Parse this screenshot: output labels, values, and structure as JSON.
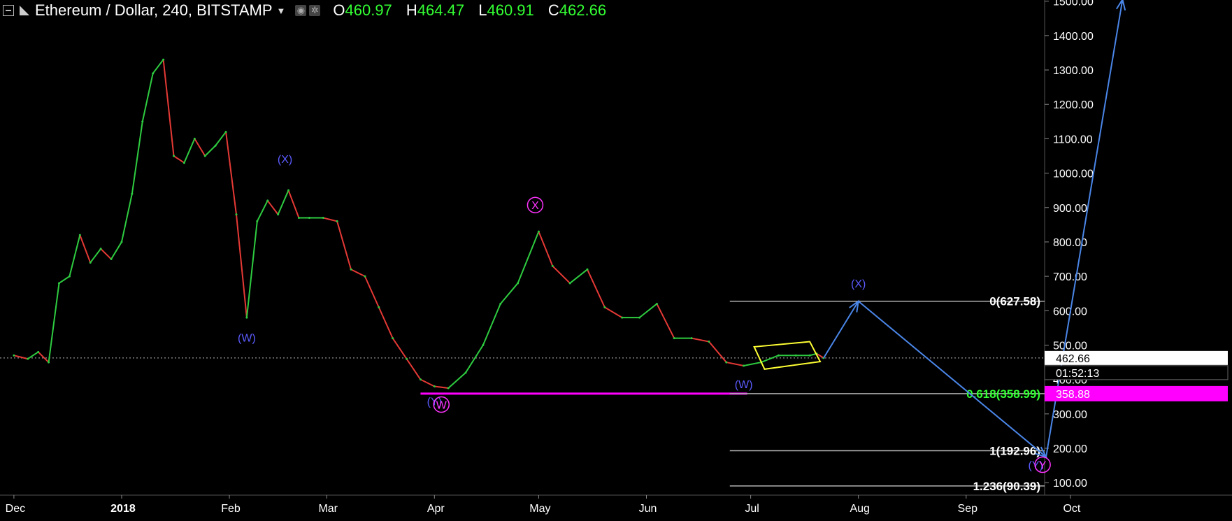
{
  "header": {
    "title": "Ethereum / Dollar, 240, BITSTAMP",
    "ohlc": [
      {
        "key": "O",
        "value": "460.97"
      },
      {
        "key": "H",
        "value": "464.47"
      },
      {
        "key": "L",
        "value": "460.91"
      },
      {
        "key": "C",
        "value": "462.66"
      }
    ]
  },
  "colors": {
    "background": "#000000",
    "up": "#2ecc40",
    "down": "#e53935",
    "projection": "#4a86e8",
    "wave_label_blue": "#5b5bff",
    "wave_label_magenta": "#ff33ff",
    "fib_line": "#b0b0b0",
    "triangle": "#ffff33"
  },
  "chart_data": {
    "type": "line",
    "title": "Ethereum / Dollar, 240, BITSTAMP",
    "x_tick_labels": [
      "Dec",
      "2018",
      "Feb",
      "Mar",
      "Apr",
      "May",
      "Jun",
      "Jul",
      "Aug",
      "Sep",
      "Oct"
    ],
    "y_tick_labels": [
      "100.00",
      "200.00",
      "300.00",
      "400.00",
      "500.00",
      "600.00",
      "700.00",
      "800.00",
      "900.00",
      "1000.00",
      "1100.00",
      "1200.00",
      "1300.00",
      "1400.00",
      "1500.00"
    ],
    "ylim": [
      40,
      1510
    ],
    "price_series": {
      "name": "",
      "x": [
        "2017-12-01",
        "2017-12-05",
        "2017-12-08",
        "2017-12-11",
        "2017-12-14",
        "2017-12-17",
        "2017-12-20",
        "2017-12-23",
        "2017-12-26",
        "2017-12-29",
        "2018-01-01",
        "2018-01-04",
        "2018-01-07",
        "2018-01-10",
        "2018-01-13",
        "2018-01-16",
        "2018-01-19",
        "2018-01-22",
        "2018-01-25",
        "2018-01-28",
        "2018-01-31",
        "2018-02-03",
        "2018-02-06",
        "2018-02-09",
        "2018-02-12",
        "2018-02-15",
        "2018-02-18",
        "2018-02-21",
        "2018-02-24",
        "2018-02-28",
        "2018-03-04",
        "2018-03-08",
        "2018-03-12",
        "2018-03-16",
        "2018-03-20",
        "2018-03-24",
        "2018-03-28",
        "2018-04-01",
        "2018-04-05",
        "2018-04-10",
        "2018-04-15",
        "2018-04-20",
        "2018-04-25",
        "2018-05-01",
        "2018-05-05",
        "2018-05-10",
        "2018-05-15",
        "2018-05-20",
        "2018-05-25",
        "2018-05-30",
        "2018-06-04",
        "2018-06-09",
        "2018-06-14",
        "2018-06-19",
        "2018-06-24",
        "2018-06-29",
        "2018-07-04",
        "2018-07-09",
        "2018-07-14",
        "2018-07-18",
        "2018-07-20",
        "2018-07-22"
      ],
      "y": [
        470,
        460,
        480,
        450,
        680,
        700,
        820,
        740,
        780,
        750,
        800,
        940,
        1150,
        1290,
        1330,
        1050,
        1030,
        1100,
        1050,
        1080,
        1120,
        880,
        580,
        860,
        920,
        880,
        950,
        870,
        870,
        870,
        860,
        720,
        700,
        610,
        520,
        460,
        400,
        380,
        375,
        420,
        500,
        620,
        680,
        830,
        730,
        680,
        720,
        610,
        580,
        580,
        620,
        520,
        520,
        510,
        450,
        440,
        450,
        470,
        470,
        470,
        475,
        462.66
      ]
    },
    "current_price": 462.66,
    "countdown": "01:52:13",
    "horizontal_support": {
      "value": 358.88,
      "label": "358.88",
      "color": "#ff00ff"
    },
    "fibonacci_levels": [
      {
        "label": "0(627.58)",
        "value": 627.58,
        "color": "#ffffff"
      },
      {
        "label": "0.618(358.99)",
        "value": 358.99,
        "color": "#33ff33"
      },
      {
        "label": "1(192.96)",
        "value": 192.96,
        "color": "#ffffff"
      },
      {
        "label": "1.236(90.39)",
        "value": 90.39,
        "color": "#ffffff"
      }
    ],
    "projection_path": {
      "x": [
        "2018-07-22",
        "2018-08-01",
        "2018-09-24",
        "2018-10-16"
      ],
      "y": [
        462.66,
        627.58,
        175,
        1505
      ]
    },
    "wave_labels": [
      {
        "text": "(X)",
        "x": "2018-02-17",
        "y": 1030,
        "color": "#5b5bff"
      },
      {
        "text": "(W)",
        "x": "2018-02-06",
        "y": 510,
        "color": "#5b5bff"
      },
      {
        "text": "X",
        "x": "2018-04-30",
        "y": 895,
        "color": "#ff33ff",
        "circled": true
      },
      {
        "text": "(Y)",
        "x": "2018-04-01",
        "y": 325,
        "color": "#5b5bff"
      },
      {
        "text": "W",
        "x": "2018-04-03",
        "y": 315,
        "color": "#ff33ff",
        "circled": true
      },
      {
        "text": "(W)",
        "x": "2018-06-29",
        "y": 375,
        "color": "#5b5bff"
      },
      {
        "text": "(X)",
        "x": "2018-08-01",
        "y": 668,
        "color": "#5b5bff"
      },
      {
        "text": "(Y)",
        "x": "2018-09-21",
        "y": 140,
        "color": "#5b5bff"
      },
      {
        "text": "Y",
        "x": "2018-09-23",
        "y": 140,
        "color": "#ff33ff",
        "circled": true
      }
    ]
  }
}
